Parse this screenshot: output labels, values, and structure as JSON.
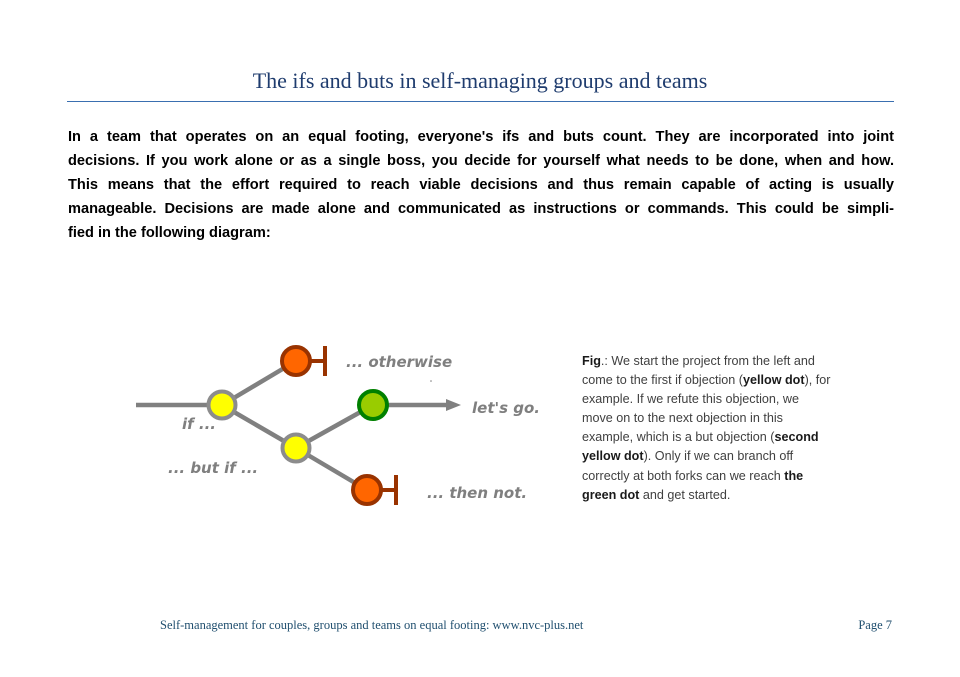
{
  "header": {
    "title": "The ifs and buts in self-managing groups and teams"
  },
  "intro_lines": [
    "In a team that operates on an equal footing, everyone's ifs and buts count. They are incorporated into joint",
    "decisions. If you work alone or as a single boss, you decide for yourself what needs to be done, when and how.",
    "This means that the effort required to reach viable decisions and thus remain capable of acting is usually",
    "manageable. Decisions are made alone and communicated as instructions or commands. This could be simpli-",
    "fied in the following diagram:"
  ],
  "diagram": {
    "labels": {
      "otherwise": "... otherwise",
      "lets_go": "let's go.",
      "if": "if ...",
      "but_if": "... but if ...",
      "then_not": "... then not."
    },
    "colors": {
      "line": "#808080",
      "yellow_fill": "#ffff00",
      "yellow_stroke": "#8c8c8c",
      "orange_fill": "#ff6600",
      "orange_stroke": "#993300",
      "green_fill": "#99cc00",
      "green_stroke": "#008000"
    }
  },
  "caption": {
    "lines": [
      [
        {
          "t": "Fig",
          "b": true
        },
        {
          "t": ".: We start the project from the left and"
        }
      ],
      [
        {
          "t": "come to the first if objection ("
        },
        {
          "t": "yellow dot",
          "b": true
        },
        {
          "t": "), for"
        }
      ],
      [
        {
          "t": "example. If we refute this objection, we"
        }
      ],
      [
        {
          "t": "move on to the next objection in this"
        }
      ],
      [
        {
          "t": "example, which is a but objection ("
        },
        {
          "t": "second",
          "b": true
        }
      ],
      [
        {
          "t": "yellow dot",
          "b": true
        },
        {
          "t": "). Only if we can branch off"
        }
      ],
      [
        {
          "t": "correctly at both forks can we reach "
        },
        {
          "t": "the",
          "b": true
        }
      ],
      [
        {
          "t": "green dot",
          "b": true
        },
        {
          "t": " and get started."
        }
      ]
    ]
  },
  "footer": {
    "text": "Self-management for couples, groups and teams on equal footing:  www.nvc-plus.net",
    "page": "Page 7"
  }
}
